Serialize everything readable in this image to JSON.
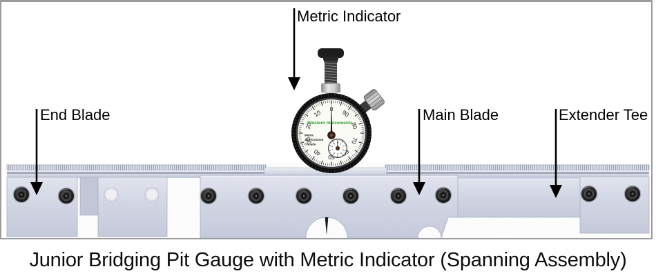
{
  "figure": {
    "caption": "Junior Bridging Pit Gauge with Metric Indicator (Spanning Assembly)"
  },
  "labels": {
    "metric_indicator": "Metric Indicator",
    "end_blade": "End Blade",
    "main_blade": "Main Blade",
    "extender_tee": "Extender Tee"
  },
  "dial": {
    "brand": "Western Instruments",
    "spec_line1": "Metric",
    "spec_line2": "12.7/0.01mm",
    "spec_line3": "Canada",
    "scale_numbers": [
      "0",
      "10",
      "20",
      "30",
      "40",
      "50",
      "60",
      "70",
      "80",
      "90"
    ],
    "subdial_numbers": [
      "0",
      "1",
      "2",
      "3",
      "4",
      "5",
      "6",
      "7",
      "8",
      "9"
    ],
    "brand_color": "#2f9e2f"
  },
  "colors": {
    "frame_border": "#9b9b9b",
    "arrow": "#000000",
    "caption_text": "#0d0d0d",
    "metal_light": "#e9ebf3",
    "metal_mid": "#ccd0e0",
    "metal_dark": "#aab0c4",
    "bezel": "#101010",
    "dial_face": "#fbfbf6"
  }
}
